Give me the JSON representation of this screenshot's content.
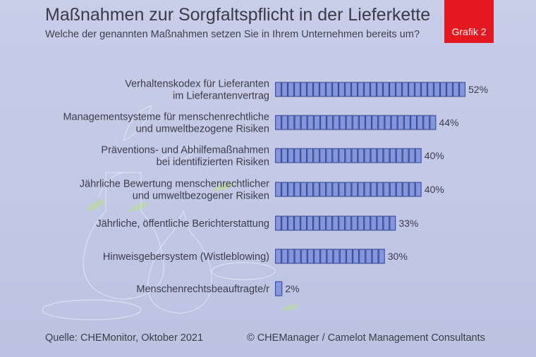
{
  "header": {
    "title": "Maßnahmen zur Sorgfaltspflicht in der Lieferkette",
    "subtitle": "Welche der genannten Maßnahmen setzen Sie in Ihrem Unternehmen bereits um?",
    "badge": "Grafik 2"
  },
  "footer": {
    "source": "Quelle: CHEMonitor, Oktober 2021",
    "copyright": "© CHEManager / Camelot Management Consultants"
  },
  "colors": {
    "bar_fill": "#8497dc",
    "bar_stroke": "#2f3f8f",
    "badge": "#e2171f",
    "text": "#3b3b4a"
  },
  "chart_data": {
    "type": "bar",
    "orientation": "horizontal",
    "unit": "%",
    "categories": [
      [
        "Verhaltenskodex für Lieferanten",
        "im Lieferantenvertrag"
      ],
      [
        "Managementsysteme für menschenrechtliche",
        "und umweltbezogene Risiken"
      ],
      [
        "Präventions- und Abhilfemaßnahmen",
        "bei identifizierten Risiken"
      ],
      [
        "Jährliche Bewertung menschenrechtlicher",
        "und umweltbezogener Risiken"
      ],
      [
        "Jährliche, öffentliche Berichterstattung"
      ],
      [
        "Hinweisgebersystem (Wistleblowing)"
      ],
      [
        "Menschenrechtsbeauftragte/r"
      ]
    ],
    "values": [
      52,
      44,
      40,
      40,
      33,
      30,
      2
    ],
    "value_labels": [
      "52%",
      "44%",
      "40%",
      "40%",
      "33%",
      "30%",
      "2%"
    ],
    "xlim": [
      0,
      52
    ],
    "grid": false,
    "legend": "none"
  }
}
